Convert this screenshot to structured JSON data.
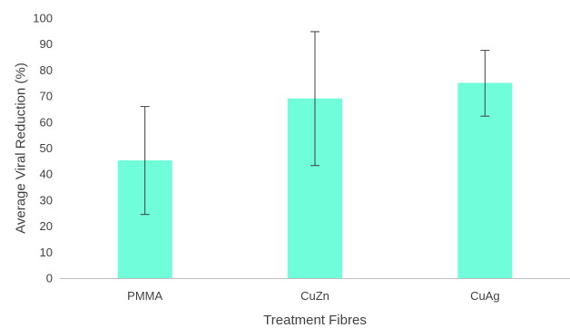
{
  "chart_data": {
    "type": "bar",
    "title": "",
    "xlabel": "Treatment Fibres",
    "ylabel": "Average Viral Reduction (%)",
    "categories": [
      "PMMA",
      "CuZn",
      "CuAg"
    ],
    "values": [
      45.3,
      69.1,
      75.1
    ],
    "error_low": [
      24.5,
      43.3,
      62.3
    ],
    "error_high": [
      66.0,
      94.8,
      87.6
    ],
    "ylim": [
      0,
      100
    ],
    "yticks": [
      0,
      10,
      20,
      30,
      40,
      50,
      60,
      70,
      80,
      90,
      100
    ],
    "ytick_labels": [
      "0",
      "10",
      "20",
      "30",
      "40",
      "50",
      "60",
      "70",
      "80",
      "90",
      "100"
    ],
    "grid": false,
    "bar_color": "#70fdd9",
    "error_color": "#404040",
    "axis_color": "#bfbfbf"
  }
}
